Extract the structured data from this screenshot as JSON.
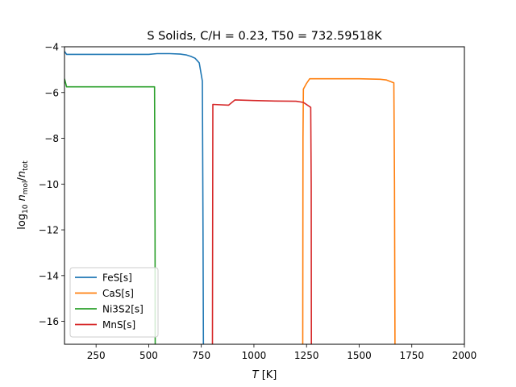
{
  "chart_data": {
    "type": "line",
    "title": "S Solids, C/H = 0.23, T50 = 732.59518K",
    "xlabel_italic": "T",
    "xlabel_unit": " [K]",
    "ylabel_main": "log",
    "ylabel_sub10": "10",
    "ylabel_n1": "n",
    "ylabel_sub1": "mol",
    "ylabel_slash": "/",
    "ylabel_n2": "n",
    "ylabel_sub2": "tot",
    "xlim": [
      100,
      2000
    ],
    "ylim": [
      -17,
      -4
    ],
    "xticks": [
      250,
      500,
      750,
      1000,
      1250,
      1500,
      1750,
      2000
    ],
    "xtick_labels": [
      "250",
      "500",
      "750",
      "1000",
      "1250",
      "1500",
      "1750",
      "2000"
    ],
    "yticks": [
      -16,
      -14,
      -12,
      -10,
      -8,
      -6,
      -4
    ],
    "ytick_labels": [
      "−16",
      "−14",
      "−12",
      "−10",
      "−8",
      "−6",
      "−4"
    ],
    "grid": false,
    "legend_position": "lower-left",
    "series": [
      {
        "name": "FeS[s]",
        "color": "#1f77b4",
        "x": [
          100,
          110,
          300,
          500,
          540,
          600,
          650,
          680,
          700,
          720,
          740,
          755,
          758,
          760
        ],
        "y": [
          -4.2,
          -4.33,
          -4.33,
          -4.33,
          -4.3,
          -4.3,
          -4.32,
          -4.36,
          -4.42,
          -4.5,
          -4.7,
          -5.5,
          -12,
          -17
        ]
      },
      {
        "name": "CaS[s]",
        "color": "#ff7f0e",
        "x": [
          1232,
          1233,
          1235,
          1250,
          1265,
          1300,
          1400,
          1500,
          1600,
          1630,
          1665,
          1668,
          1670
        ],
        "y": [
          -17,
          -8,
          -5.85,
          -5.6,
          -5.4,
          -5.4,
          -5.4,
          -5.4,
          -5.42,
          -5.45,
          -5.58,
          -10,
          -17
        ]
      },
      {
        "name": "Ni3S2[s]",
        "color": "#2ca02c",
        "x": [
          100,
          110,
          200,
          300,
          400,
          500,
          528,
          530,
          531
        ],
        "y": [
          -5.4,
          -5.75,
          -5.75,
          -5.75,
          -5.75,
          -5.75,
          -5.75,
          -12,
          -17
        ]
      },
      {
        "name": "MnS[s]",
        "color": "#d62728",
        "x": [
          803,
          805,
          880,
          910,
          1000,
          1100,
          1200,
          1235,
          1270,
          1272,
          1273
        ],
        "y": [
          -17,
          -6.52,
          -6.55,
          -6.32,
          -6.35,
          -6.37,
          -6.38,
          -6.43,
          -6.65,
          -10,
          -17
        ]
      }
    ]
  }
}
